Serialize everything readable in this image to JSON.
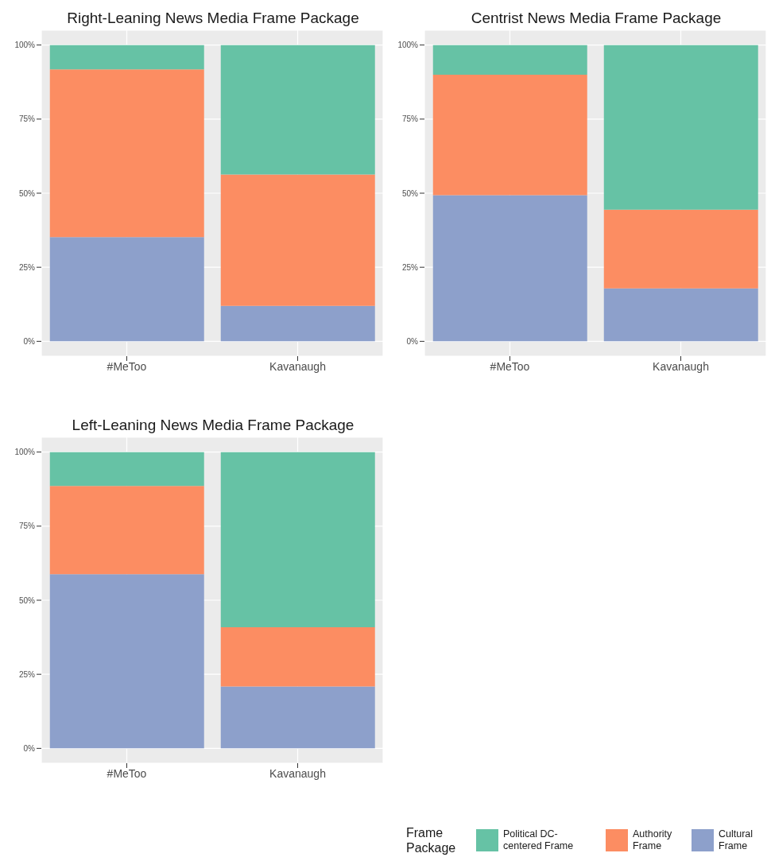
{
  "chart_data": [
    {
      "type": "bar",
      "title": "Right-Leaning News Media Frame Package",
      "categories": [
        "#MeToo",
        "Kavanaugh"
      ],
      "stacked": true,
      "ylim": [
        -5,
        105
      ],
      "yticks": [
        {
          "value": 0,
          "label": "0%"
        },
        {
          "value": 25,
          "label": "25%"
        },
        {
          "value": 50,
          "label": "50%"
        },
        {
          "value": 75,
          "label": "75%"
        },
        {
          "value": 100,
          "label": "100%"
        }
      ],
      "grid": true,
      "legend": "bottom right",
      "legend_title": "Frame Package",
      "series": [
        {
          "name": "Cultural Frame",
          "color": "#8da0cb",
          "values": [
            35.2,
            12.0
          ]
        },
        {
          "name": "Authority Frame",
          "color": "#fc8d62",
          "values": [
            56.6,
            44.3
          ]
        },
        {
          "name": "Political DC-centered Frame",
          "color": "#66c2a5",
          "values": [
            8.2,
            43.7
          ]
        }
      ]
    },
    {
      "type": "bar",
      "title": "Centrist News Media Frame Package",
      "categories": [
        "#MeToo",
        "Kavanaugh"
      ],
      "stacked": true,
      "ylim": [
        -5,
        105
      ],
      "yticks": [
        {
          "value": 0,
          "label": "0%"
        },
        {
          "value": 25,
          "label": "25%"
        },
        {
          "value": 50,
          "label": "50%"
        },
        {
          "value": 75,
          "label": "75%"
        },
        {
          "value": 100,
          "label": "100%"
        }
      ],
      "grid": true,
      "series": [
        {
          "color": "#8da0cb",
          "values": [
            49.3,
            17.9
          ]
        },
        {
          "color": "#fc8d62",
          "values": [
            40.7,
            26.5
          ]
        },
        {
          "color": "#66c2a5",
          "values": [
            10.0,
            55.6
          ]
        }
      ]
    },
    {
      "type": "bar",
      "title": "Left-Leaning News Media Frame Package",
      "categories": [
        "#MeToo",
        "Kavanaugh"
      ],
      "stacked": true,
      "ylim": [
        -5,
        105
      ],
      "yticks": [
        {
          "value": 0,
          "label": "0%"
        },
        {
          "value": 25,
          "label": "25%"
        },
        {
          "value": 50,
          "label": "50%"
        },
        {
          "value": 75,
          "label": "75%"
        },
        {
          "value": 100,
          "label": "100%"
        }
      ],
      "grid": true,
      "series": [
        {
          "color": "#8da0cb",
          "values": [
            58.8,
            20.9
          ]
        },
        {
          "color": "#fc8d62",
          "values": [
            29.8,
            20.0
          ]
        },
        {
          "color": "#66c2a5",
          "values": [
            11.4,
            59.1
          ]
        }
      ]
    }
  ]
}
